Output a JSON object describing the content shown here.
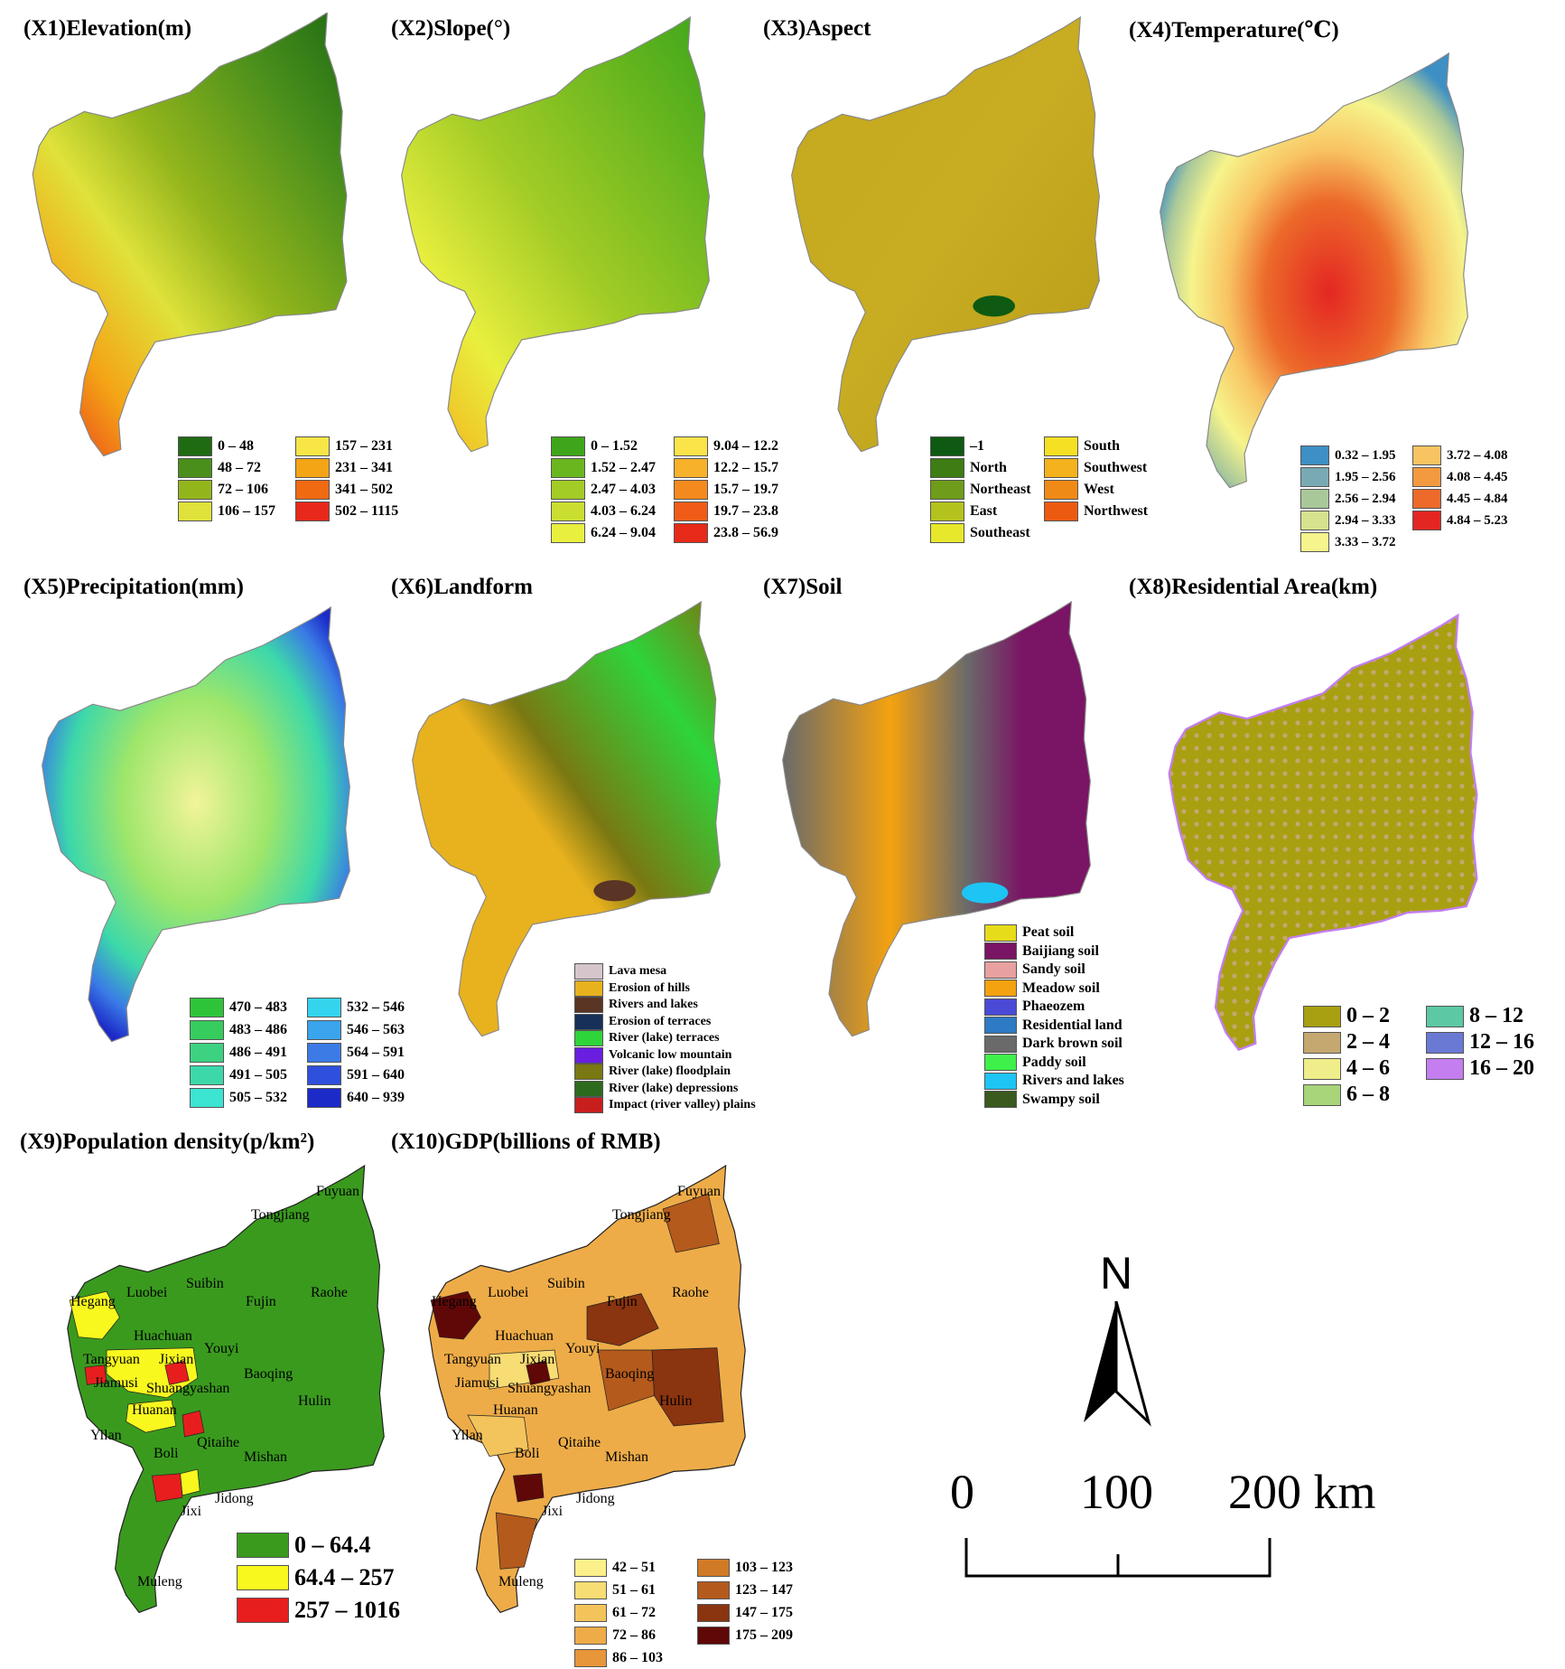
{
  "panels": [
    {
      "id": "x1",
      "title": "(X1)Elevation(m)",
      "legend_cols": [
        [
          {
            "label": "0 – 48",
            "color": "#1f6b12"
          },
          {
            "label": "48 – 72",
            "color": "#4a8f1c"
          },
          {
            "label": "72 – 106",
            "color": "#93b51c"
          },
          {
            "label": "106 – 157",
            "color": "#dfe23a"
          }
        ],
        [
          {
            "label": "157 – 231",
            "color": "#f7e646"
          },
          {
            "label": "231 – 341",
            "color": "#f4a516"
          },
          {
            "label": "341 – 502",
            "color": "#f06a12"
          },
          {
            "label": "502 – 1115",
            "color": "#e8281a"
          }
        ]
      ]
    },
    {
      "id": "x2",
      "title": "(X2)Slope(°)",
      "legend_cols": [
        [
          {
            "label": "0 – 1.52",
            "color": "#3ea61a"
          },
          {
            "label": "1.52 – 2.47",
            "color": "#6ab61e"
          },
          {
            "label": "2.47 – 4.03",
            "color": "#a3cc26"
          },
          {
            "label": "4.03 – 6.24",
            "color": "#c9de30"
          },
          {
            "label": "6.24 – 9.04",
            "color": "#e9ef3e"
          }
        ],
        [
          {
            "label": "9.04 – 12.2",
            "color": "#fbe34a"
          },
          {
            "label": "12.2 – 15.7",
            "color": "#f7b12a"
          },
          {
            "label": "15.7 – 19.7",
            "color": "#f48a1e"
          },
          {
            "label": "19.7 – 23.8",
            "color": "#f05c18"
          },
          {
            "label": "23.8 – 56.9",
            "color": "#e82a18"
          }
        ]
      ]
    },
    {
      "id": "x3",
      "title": "(X3)Aspect",
      "legend_cols": [
        [
          {
            "label": "–1",
            "color": "#0e5a12"
          },
          {
            "label": "North",
            "color": "#3d7d14"
          },
          {
            "label": "Northeast",
            "color": "#6f9c1a"
          },
          {
            "label": "East",
            "color": "#b4c21e"
          },
          {
            "label": "Southeast",
            "color": "#e7e82c"
          }
        ],
        [
          {
            "label": "South",
            "color": "#f6e024"
          },
          {
            "label": "Southwest",
            "color": "#f4b21c"
          },
          {
            "label": "West",
            "color": "#f08a16"
          },
          {
            "label": "Northwest",
            "color": "#ec5a12"
          }
        ]
      ]
    },
    {
      "id": "x4",
      "title": "(X4)Temperature(℃)",
      "legend_cols": [
        [
          {
            "label": "0.32 – 1.95",
            "color": "#3d8fc4"
          },
          {
            "label": "1.95 – 2.56",
            "color": "#79aab4"
          },
          {
            "label": "2.56 – 2.94",
            "color": "#a9c89a"
          },
          {
            "label": "2.94 – 3.33",
            "color": "#d6e28e"
          },
          {
            "label": "3.33 – 3.72",
            "color": "#f6f48c"
          }
        ],
        [
          {
            "label": "3.72 – 4.08",
            "color": "#f8c462"
          },
          {
            "label": "4.08 – 4.45",
            "color": "#f39a40"
          },
          {
            "label": "4.45 – 4.84",
            "color": "#ec6a2a"
          },
          {
            "label": "4.84 – 5.23",
            "color": "#e42622"
          }
        ]
      ]
    },
    {
      "id": "x5",
      "title": "(X5)Precipitation(mm)",
      "legend_cols": [
        [
          {
            "label": "470 – 483",
            "color": "#2ec43a"
          },
          {
            "label": "483 – 486",
            "color": "#36cc5e"
          },
          {
            "label": "486 – 491",
            "color": "#3cd282"
          },
          {
            "label": "491 – 505",
            "color": "#3cd8aa"
          },
          {
            "label": "505 – 532",
            "color": "#3ce4d2"
          }
        ],
        [
          {
            "label": "532 – 546",
            "color": "#34d4ee"
          },
          {
            "label": "546 – 563",
            "color": "#3aa4ec"
          },
          {
            "label": "564 – 591",
            "color": "#3c7ae6"
          },
          {
            "label": "591 – 640",
            "color": "#2e50dc"
          },
          {
            "label": "640 – 939",
            "color": "#1c2ac8"
          }
        ]
      ]
    },
    {
      "id": "x6",
      "title": "(X6)Landform",
      "legend_cols": [
        [
          {
            "label": "Lava mesa",
            "color": "#d6c6cc"
          },
          {
            "label": "Erosion of hills",
            "color": "#e8b11e"
          },
          {
            "label": "Rivers and lakes",
            "color": "#5a3424"
          },
          {
            "label": "Erosion of terraces",
            "color": "#16305a"
          },
          {
            "label": "River (lake) terraces",
            "color": "#2ed43a"
          },
          {
            "label": "Volcanic low mountain",
            "color": "#6a1ee0"
          },
          {
            "label": "River (lake) floodplain",
            "color": "#7a7812"
          },
          {
            "label": "River (lake) depressions",
            "color": "#2e6a1e"
          },
          {
            "label": "Impact (river valley) plains",
            "color": "#c81e1e"
          }
        ]
      ]
    },
    {
      "id": "x7",
      "title": "(X7)Soil",
      "legend_cols": [
        [
          {
            "label": "Peat soil",
            "color": "#e6dc1a"
          },
          {
            "label": "Baijiang soil",
            "color": "#7a1464"
          },
          {
            "label": "Sandy soil",
            "color": "#e8a0a0"
          },
          {
            "label": "Meadow soil",
            "color": "#f4a210"
          },
          {
            "label": "Phaeozem",
            "color": "#4a4ad6"
          },
          {
            "label": "Residential land",
            "color": "#2e7ac4"
          },
          {
            "label": "Dark brown soil",
            "color": "#6a6a6a"
          },
          {
            "label": "Paddy soil",
            "color": "#3ef04a"
          },
          {
            "label": "Rivers and lakes",
            "color": "#1ec4f4"
          },
          {
            "label": "Swampy soil",
            "color": "#3a5a1e"
          }
        ]
      ]
    },
    {
      "id": "x8",
      "title": "(X8)Residential Area(km)",
      "legend_cols": [
        [
          {
            "label": "0 – 2",
            "color": "#a8a010"
          },
          {
            "label": "2 – 4",
            "color": "#c4a870"
          },
          {
            "label": "4 – 6",
            "color": "#f0ee8a"
          },
          {
            "label": "6 – 8",
            "color": "#a8d47a"
          }
        ],
        [
          {
            "label": "8 – 12",
            "color": "#5cc8a4"
          },
          {
            "label": "12 – 16",
            "color": "#6a7ad4"
          },
          {
            "label": "16 – 20",
            "color": "#c47ef0"
          }
        ]
      ]
    },
    {
      "id": "x9",
      "title": "(X9)Population density(p/km²)",
      "legend_cols": [
        [
          {
            "label": "0 – 64.4",
            "color": "#3a9a1e"
          },
          {
            "label": "64.4 – 257",
            "color": "#f8f81e"
          },
          {
            "label": "257 – 1016",
            "color": "#e81e1e"
          }
        ]
      ]
    },
    {
      "id": "x10",
      "title": "(X10)GDP(billions of RMB)",
      "legend_cols": [
        [
          {
            "label": "42 – 51",
            "color": "#fbf08a"
          },
          {
            "label": "51 – 61",
            "color": "#f8dc74"
          },
          {
            "label": "61 – 72",
            "color": "#f4c45c"
          },
          {
            "label": "72 – 86",
            "color": "#eeac48"
          },
          {
            "label": "86 – 103",
            "color": "#e8963a"
          }
        ],
        [
          {
            "label": "103 – 123",
            "color": "#d07a26"
          },
          {
            "label": "123 – 147",
            "color": "#b45a1c"
          },
          {
            "label": "147 – 175",
            "color": "#8a3410"
          },
          {
            "label": "175 – 209",
            "color": "#600808"
          }
        ]
      ]
    }
  ],
  "places": [
    "Fuyuan",
    "Tongjiang",
    "Raohe",
    "Fujin",
    "Suibin",
    "Luobei",
    "Hegang",
    "Huachuan",
    "Youyi",
    "Jixian",
    "Tangyuan",
    "Baoqing",
    "Jiamusi",
    "Shuangyashan",
    "Huanan",
    "Hulin",
    "Qitaihe",
    "Yilan",
    "Boli",
    "Mishan",
    "Jidong",
    "Jixi",
    "Muleng"
  ],
  "north_label": "N",
  "scale": {
    "ticks": [
      "0",
      "100",
      "200 km"
    ]
  }
}
